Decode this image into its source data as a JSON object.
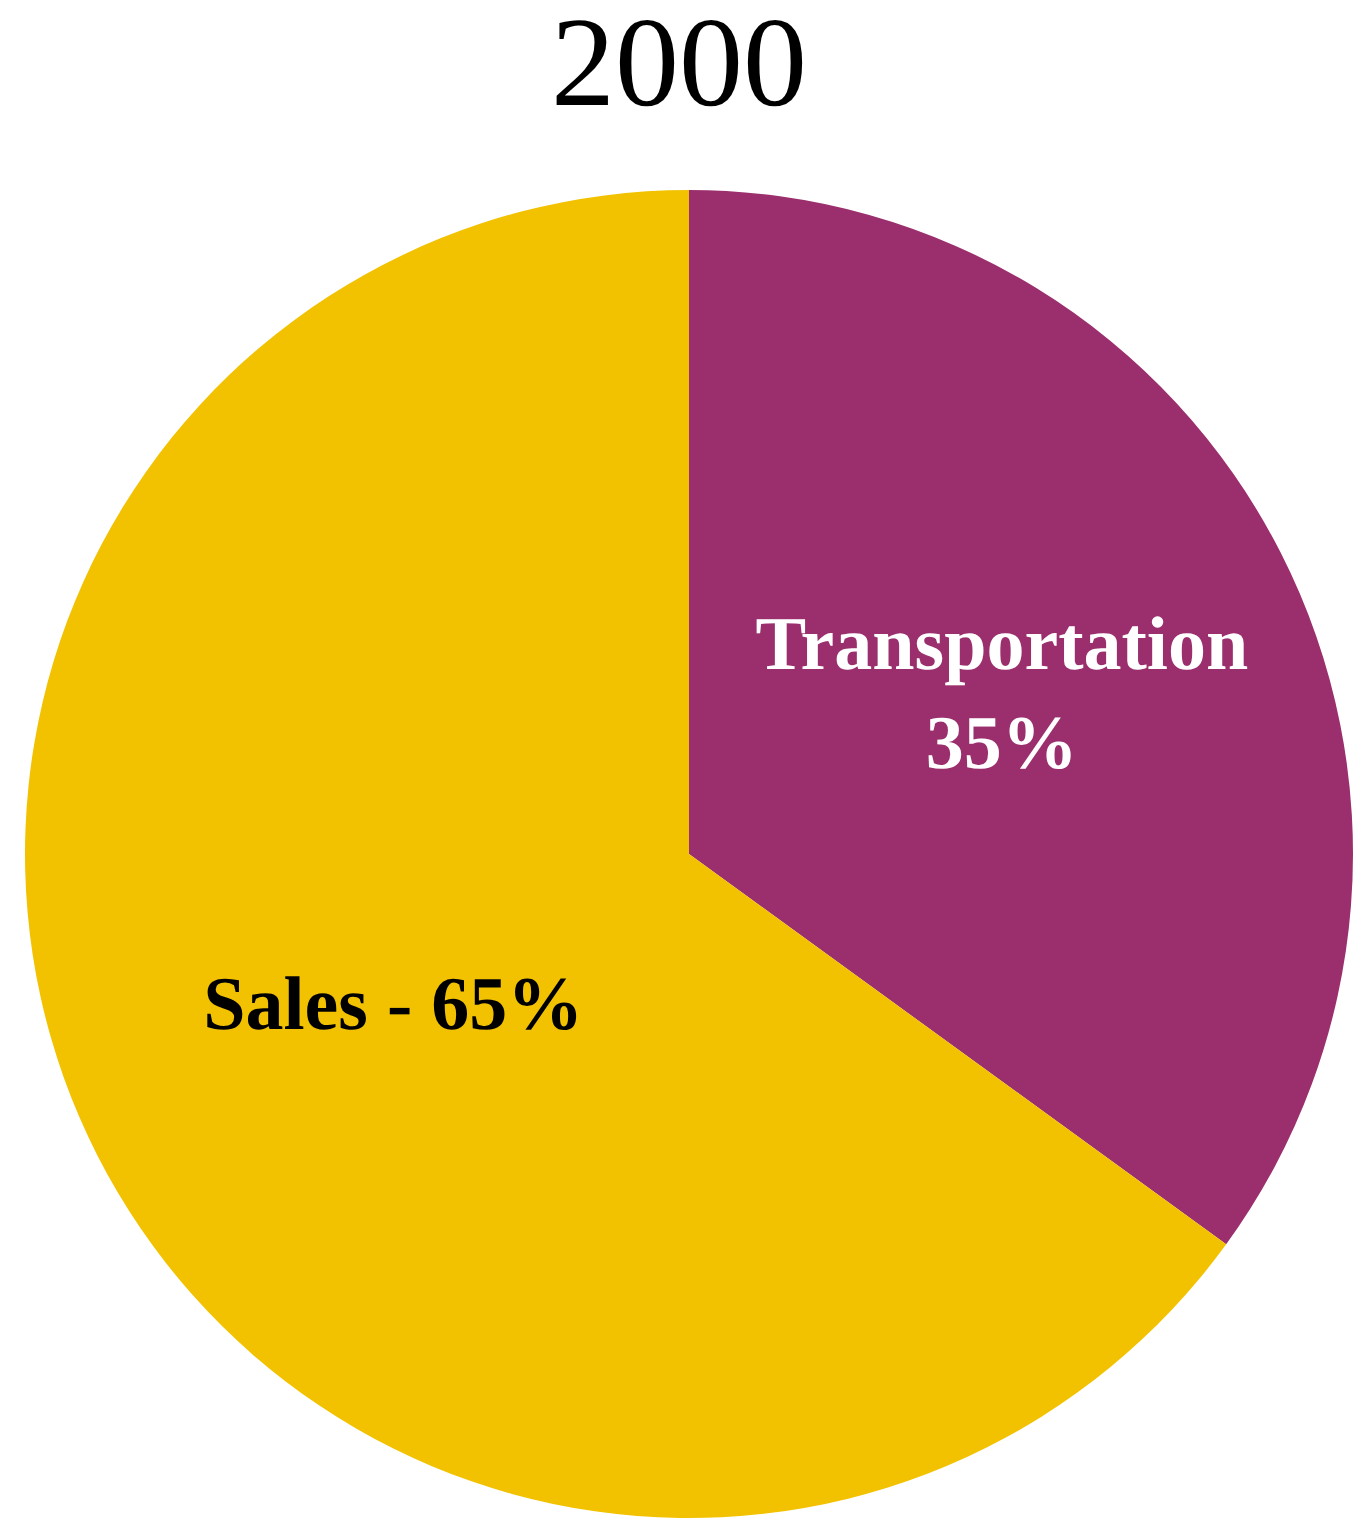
{
  "chart_data": {
    "type": "pie",
    "title": "2000",
    "categories": [
      "Transportation",
      "Sales"
    ],
    "values": [
      35,
      65
    ],
    "colors": [
      "#9b2f6e",
      "#f2c200"
    ],
    "value_labels": [
      "35%",
      "65%"
    ],
    "legend": false
  }
}
